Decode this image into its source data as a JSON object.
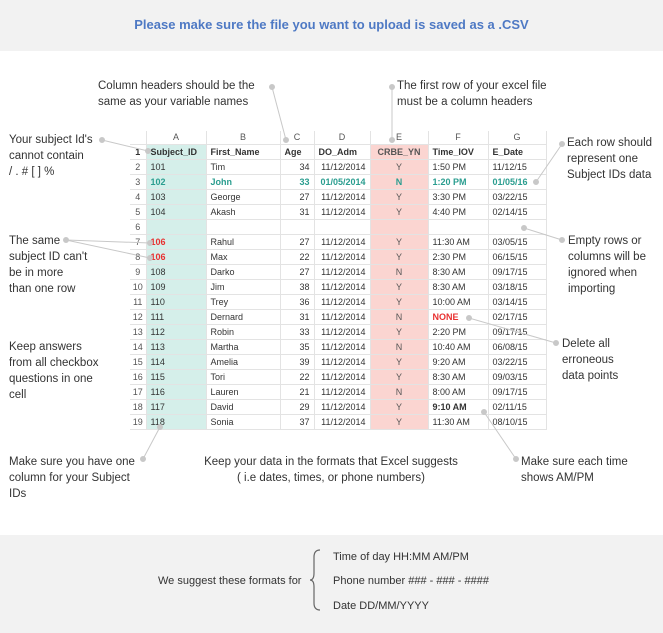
{
  "banner": "Please make sure the file you want to upload is saved as a .CSV",
  "notes": {
    "column_headers": "Column headers should be the\nsame as your variable names",
    "first_row": "The first row of your excel file\nmust be a column headers",
    "subject_id": "Your subject Id's\ncannot contain\n/ . # [ ] %",
    "each_row": "Each row should\nrepresent  one\nSubject IDs data",
    "same_id": "The same\nsubject ID can't\nbe in more\nthan one row",
    "empty_rows": "Empty rows or\ncolumns will be\nignored when\nimporting",
    "checkbox": "Keep answers\nfrom all checkbox\nquestions in one\ncell",
    "erroneous": "Delete all\nerroneous\ndata points",
    "subject_column": "Make sure you have one\ncolumn for your Subject\nIDs",
    "formats": "Keep your data in the formats that Excel suggests\n( i.e dates, times, or phone numbers)",
    "ampm": "Make sure each time\nshows AM/PM"
  },
  "sheet": {
    "col_letters": [
      "A",
      "B",
      "C",
      "D",
      "E",
      "F",
      "G"
    ],
    "headers": [
      "Subject_ID",
      "First_Name",
      "Age",
      "DO_Adm",
      "CRBE_YN",
      "Time_IOV",
      "E_Date"
    ],
    "rows": [
      {
        "n": "2",
        "cells": [
          "101",
          "Tim",
          "34",
          "11/12/2014",
          "Y",
          "1:50 PM",
          "11/12/15"
        ]
      },
      {
        "n": "3",
        "cells": [
          "102",
          "John",
          "33",
          "01/05/2014",
          "N",
          "1:20 PM",
          "01/05/16"
        ]
      },
      {
        "n": "4",
        "cells": [
          "103",
          "George",
          "27",
          "11/12/2014",
          "Y",
          "3:30 PM",
          "03/22/15"
        ]
      },
      {
        "n": "5",
        "cells": [
          "104",
          "Akash",
          "31",
          "11/12/2014",
          "Y",
          "4:40 PM",
          "02/14/15"
        ]
      },
      {
        "n": "6",
        "cells": [
          "",
          "",
          "",
          "",
          "",
          "",
          ""
        ]
      },
      {
        "n": "7",
        "cells": [
          "106",
          "Rahul",
          "27",
          "11/12/2014",
          "Y",
          "11:30 AM",
          "03/05/15"
        ]
      },
      {
        "n": "8",
        "cells": [
          "106",
          "Max",
          "22",
          "11/12/2014",
          "Y",
          "2:30 PM",
          "06/15/15"
        ]
      },
      {
        "n": "9",
        "cells": [
          "108",
          "Darko",
          "27",
          "11/12/2014",
          "N",
          "8:30 AM",
          "09/17/15"
        ]
      },
      {
        "n": "10",
        "cells": [
          "109",
          "Jim",
          "38",
          "11/12/2014",
          "Y",
          "8:30 AM",
          "03/18/15"
        ]
      },
      {
        "n": "11",
        "cells": [
          "110",
          "Trey",
          "36",
          "11/12/2014",
          "Y",
          "10:00 AM",
          "03/14/15"
        ]
      },
      {
        "n": "12",
        "cells": [
          "111",
          "Dernard",
          "31",
          "11/12/2014",
          "N",
          "NONE",
          "02/17/15"
        ]
      },
      {
        "n": "13",
        "cells": [
          "112",
          "Robin",
          "33",
          "11/12/2014",
          "Y",
          "2:20 PM",
          "09/17/15"
        ]
      },
      {
        "n": "14",
        "cells": [
          "113",
          "Martha",
          "35",
          "11/12/2014",
          "N",
          "10:40 AM",
          "06/08/15"
        ]
      },
      {
        "n": "15",
        "cells": [
          "114",
          "Amelia",
          "39",
          "11/12/2014",
          "Y",
          "9:20 AM",
          "03/22/15"
        ]
      },
      {
        "n": "16",
        "cells": [
          "115",
          "Tori",
          "22",
          "11/12/2014",
          "Y",
          "8:30 AM",
          "09/03/15"
        ]
      },
      {
        "n": "17",
        "cells": [
          "116",
          "Lauren",
          "21",
          "11/12/2014",
          "N",
          "8:00 AM",
          "09/17/15"
        ]
      },
      {
        "n": "18",
        "cells": [
          "117",
          "David",
          "29",
          "11/12/2014",
          "Y",
          "9:10 AM",
          "02/11/15"
        ]
      },
      {
        "n": "19",
        "cells": [
          "118",
          "Sonia",
          "37",
          "11/12/2014",
          "Y",
          "11:30 AM",
          "08/10/15"
        ]
      }
    ]
  },
  "footer": {
    "lead": "We suggest these formats for",
    "formats": [
      "Time of day HH:MM AM/PM",
      "Phone number ### - ### - ####",
      "Date DD/MM/YYYY"
    ]
  },
  "colors": {
    "banner_text": "#4e79c4",
    "subject_column": "#d5efea",
    "crbe_column": "#fbd5d1",
    "highlight_teal": "#2a9d8f",
    "error_red": "#e83030",
    "callout_line": "#c8c8c8"
  }
}
